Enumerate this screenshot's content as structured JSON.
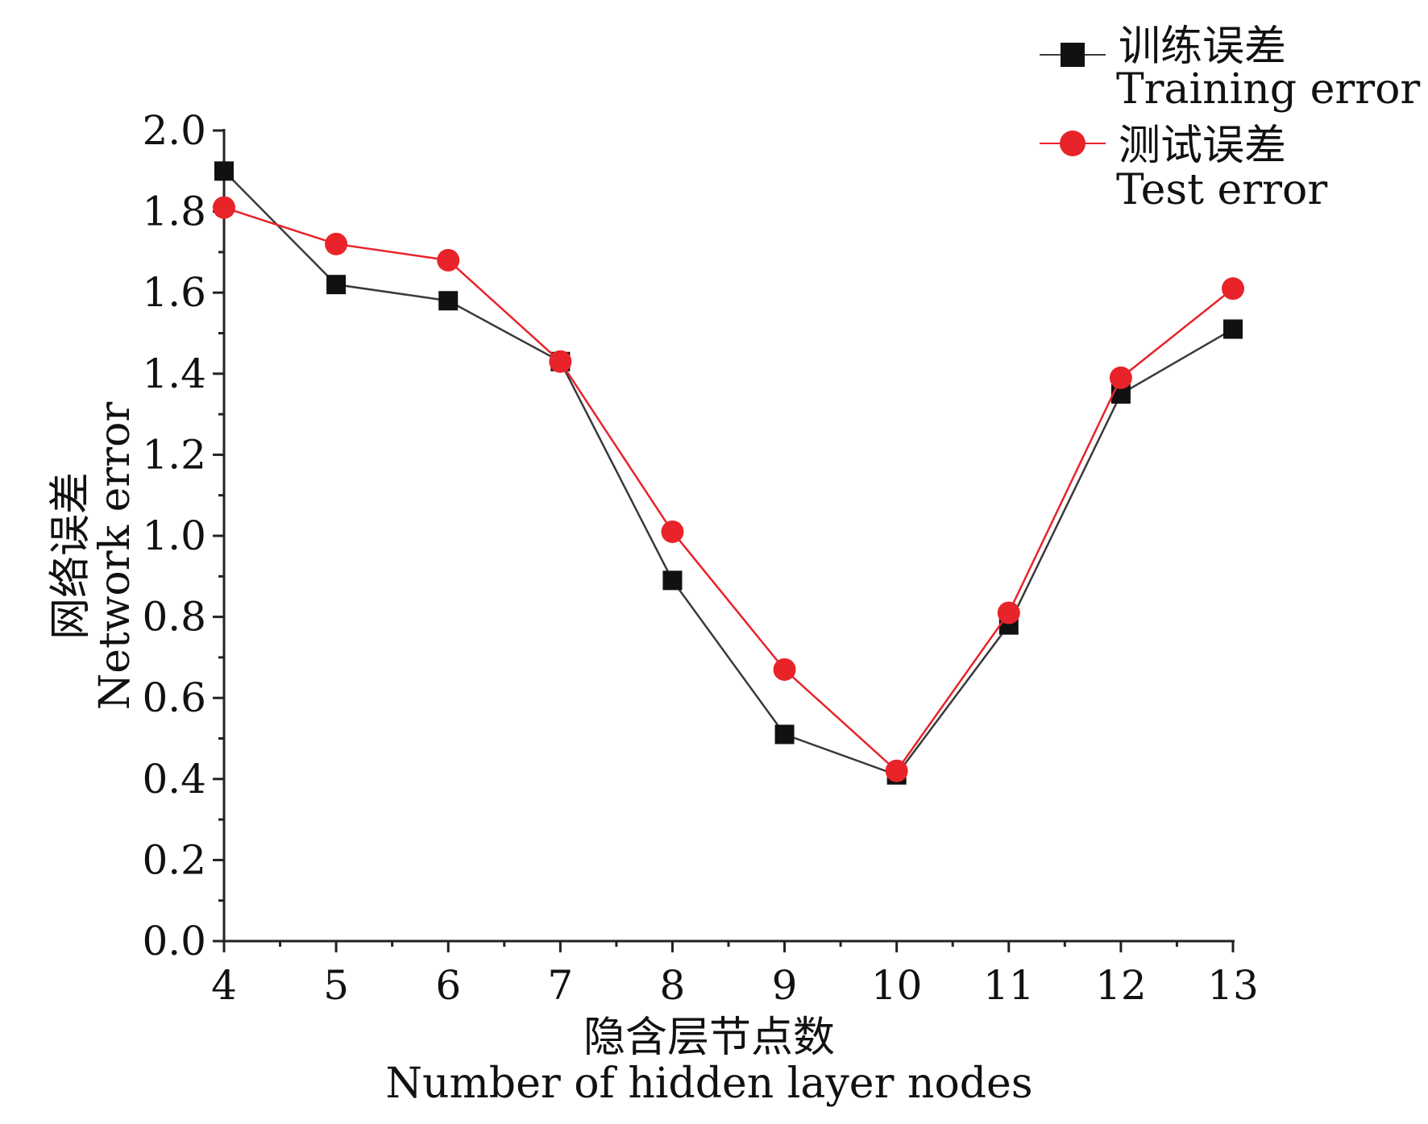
{
  "chart_data": {
    "type": "line",
    "x": [
      4,
      5,
      6,
      7,
      8,
      9,
      10,
      11,
      12,
      13
    ],
    "xlabel_zh": "隐含层节点数",
    "xlabel_en": "Number of hidden layer nodes",
    "ylabel_zh": "网络误差",
    "ylabel_en": "Network error",
    "xlim": [
      4,
      13
    ],
    "ylim": [
      0.0,
      2.0
    ],
    "x_ticks": [
      "4",
      "5",
      "6",
      "7",
      "8",
      "9",
      "10",
      "11",
      "12",
      "13"
    ],
    "y_ticks": [
      "0.0",
      "0.2",
      "0.4",
      "0.6",
      "0.8",
      "1.0",
      "1.2",
      "1.4",
      "1.6",
      "1.8",
      "2.0"
    ],
    "grid": false,
    "legend_position": "top-right",
    "series": [
      {
        "name_zh": "训练误差",
        "name_en": "Training error",
        "marker": "square",
        "color": "#111111",
        "line_color": "#3a3a3a",
        "values": [
          1.9,
          1.62,
          1.58,
          1.43,
          0.89,
          0.51,
          0.41,
          0.78,
          1.35,
          1.51
        ]
      },
      {
        "name_zh": "测试误差",
        "name_en": "Test error",
        "marker": "circle",
        "color": "#e8232a",
        "line_color": "#e8232a",
        "values": [
          1.81,
          1.72,
          1.68,
          1.43,
          1.01,
          0.67,
          0.42,
          0.81,
          1.39,
          1.61
        ]
      }
    ]
  }
}
